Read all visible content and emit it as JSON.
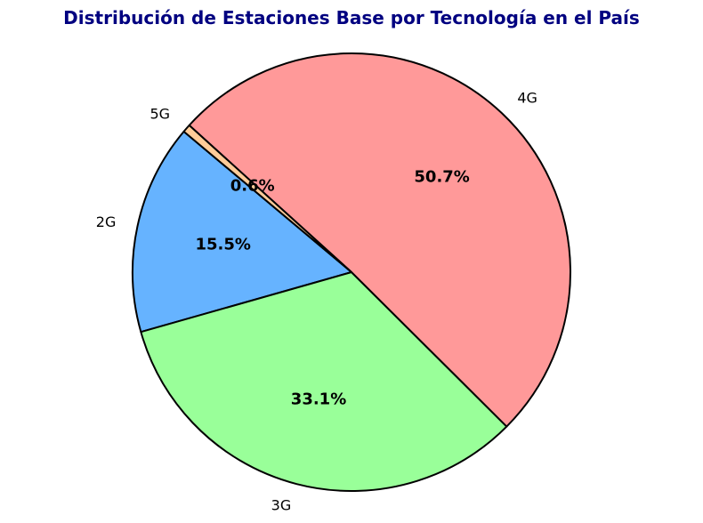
{
  "chart_data": {
    "type": "pie",
    "title": "Distribución de Estaciones Base por Tecnología en el País",
    "categories": [
      "2G",
      "3G",
      "4G",
      "5G"
    ],
    "values": [
      15.5,
      33.1,
      50.7,
      0.6
    ],
    "percent_labels": [
      "15.5%",
      "33.1%",
      "50.7%",
      "0.6%"
    ],
    "colors": [
      "#66b3ff",
      "#99ff99",
      "#ff9999",
      "#ffcc99"
    ],
    "edge_color": "#000000",
    "title_color": "#000080",
    "start_angle_deg": 140,
    "direction": "counterclockwise"
  }
}
